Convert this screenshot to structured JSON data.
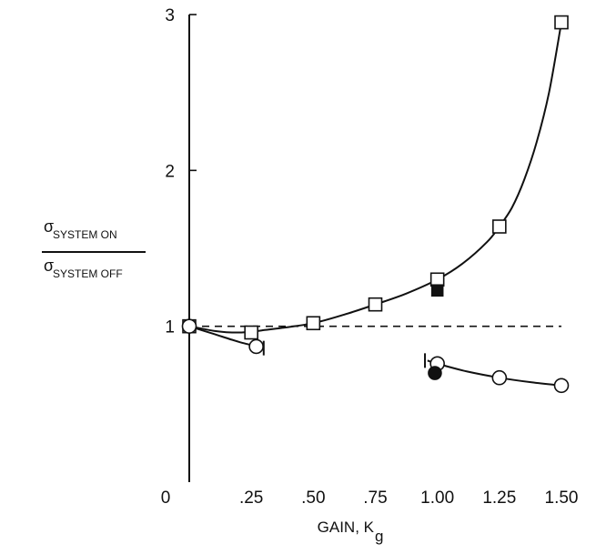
{
  "chart_data": {
    "type": "scatter",
    "xlabel": "GAIN, K",
    "xlabel_subscript": "g",
    "ylabel": {
      "numerator_symbol": "σ",
      "numerator_subscript": "SYSTEM ON",
      "denominator_symbol": "σ",
      "denominator_subscript": "SYSTEM OFF"
    },
    "xlim": [
      0,
      1.5
    ],
    "ylim": [
      0,
      3
    ],
    "x_ticks": [
      {
        "value": 0,
        "label": "0"
      },
      {
        "value": 0.25,
        "label": ".25"
      },
      {
        "value": 0.5,
        "label": ".50"
      },
      {
        "value": 0.75,
        "label": ".75"
      },
      {
        "value": 1.0,
        "label": "1.00"
      },
      {
        "value": 1.25,
        "label": "1.25"
      },
      {
        "value": 1.5,
        "label": "1.50"
      }
    ],
    "y_ticks": [
      {
        "value": 1,
        "label": "1"
      },
      {
        "value": 2,
        "label": "2"
      },
      {
        "value": 3,
        "label": "3"
      }
    ],
    "reference_line": {
      "y": 1.0,
      "style": "dashed"
    },
    "series": [
      {
        "marker": "open-square",
        "points": [
          {
            "x": 0,
            "y": 1.0
          },
          {
            "x": 0.25,
            "y": 0.96
          },
          {
            "x": 0.5,
            "y": 1.02
          },
          {
            "x": 0.75,
            "y": 1.14
          },
          {
            "x": 1.0,
            "y": 1.3
          },
          {
            "x": 1.25,
            "y": 1.64
          },
          {
            "x": 1.5,
            "y": 2.95
          }
        ],
        "curve": [
          [
            0,
            1.0
          ],
          [
            0.05,
            0.985
          ],
          [
            0.1,
            0.97
          ],
          [
            0.15,
            0.962
          ],
          [
            0.2,
            0.96
          ],
          [
            0.25,
            0.965
          ],
          [
            0.3,
            0.975
          ],
          [
            0.375,
            0.99
          ],
          [
            0.5,
            1.02
          ],
          [
            0.625,
            1.075
          ],
          [
            0.75,
            1.14
          ],
          [
            0.875,
            1.21
          ],
          [
            1.0,
            1.3
          ],
          [
            1.1,
            1.4
          ],
          [
            1.2,
            1.54
          ],
          [
            1.25,
            1.64
          ],
          [
            1.3,
            1.76
          ],
          [
            1.35,
            1.94
          ],
          [
            1.4,
            2.18
          ],
          [
            1.45,
            2.5
          ],
          [
            1.5,
            2.95
          ]
        ]
      },
      {
        "marker": "filled-square",
        "points": [
          {
            "x": 1.0,
            "y": 1.23
          }
        ]
      },
      {
        "marker": "open-circle",
        "points": [
          {
            "x": 0,
            "y": 1.0
          },
          {
            "x": 0.27,
            "y": 0.87
          },
          {
            "x": 1.0,
            "y": 0.76
          },
          {
            "x": 1.25,
            "y": 0.67
          },
          {
            "x": 1.5,
            "y": 0.62
          }
        ],
        "curve_segments": [
          [
            [
              0,
              1.0
            ],
            [
              0.1,
              0.95
            ],
            [
              0.2,
              0.9
            ],
            [
              0.3,
              0.86
            ]
          ],
          [
            [
              0.96,
              0.78
            ],
            [
              1.0,
              0.76
            ],
            [
              1.12,
              0.71
            ],
            [
              1.25,
              0.67
            ],
            [
              1.38,
              0.64
            ],
            [
              1.5,
              0.62
            ]
          ]
        ],
        "range_caps": [
          {
            "x": 0.3,
            "y": 0.86
          },
          {
            "x": 0.95,
            "y": 0.78
          }
        ]
      },
      {
        "marker": "filled-circle",
        "points": [
          {
            "x": 0.99,
            "y": 0.7
          }
        ]
      }
    ]
  }
}
